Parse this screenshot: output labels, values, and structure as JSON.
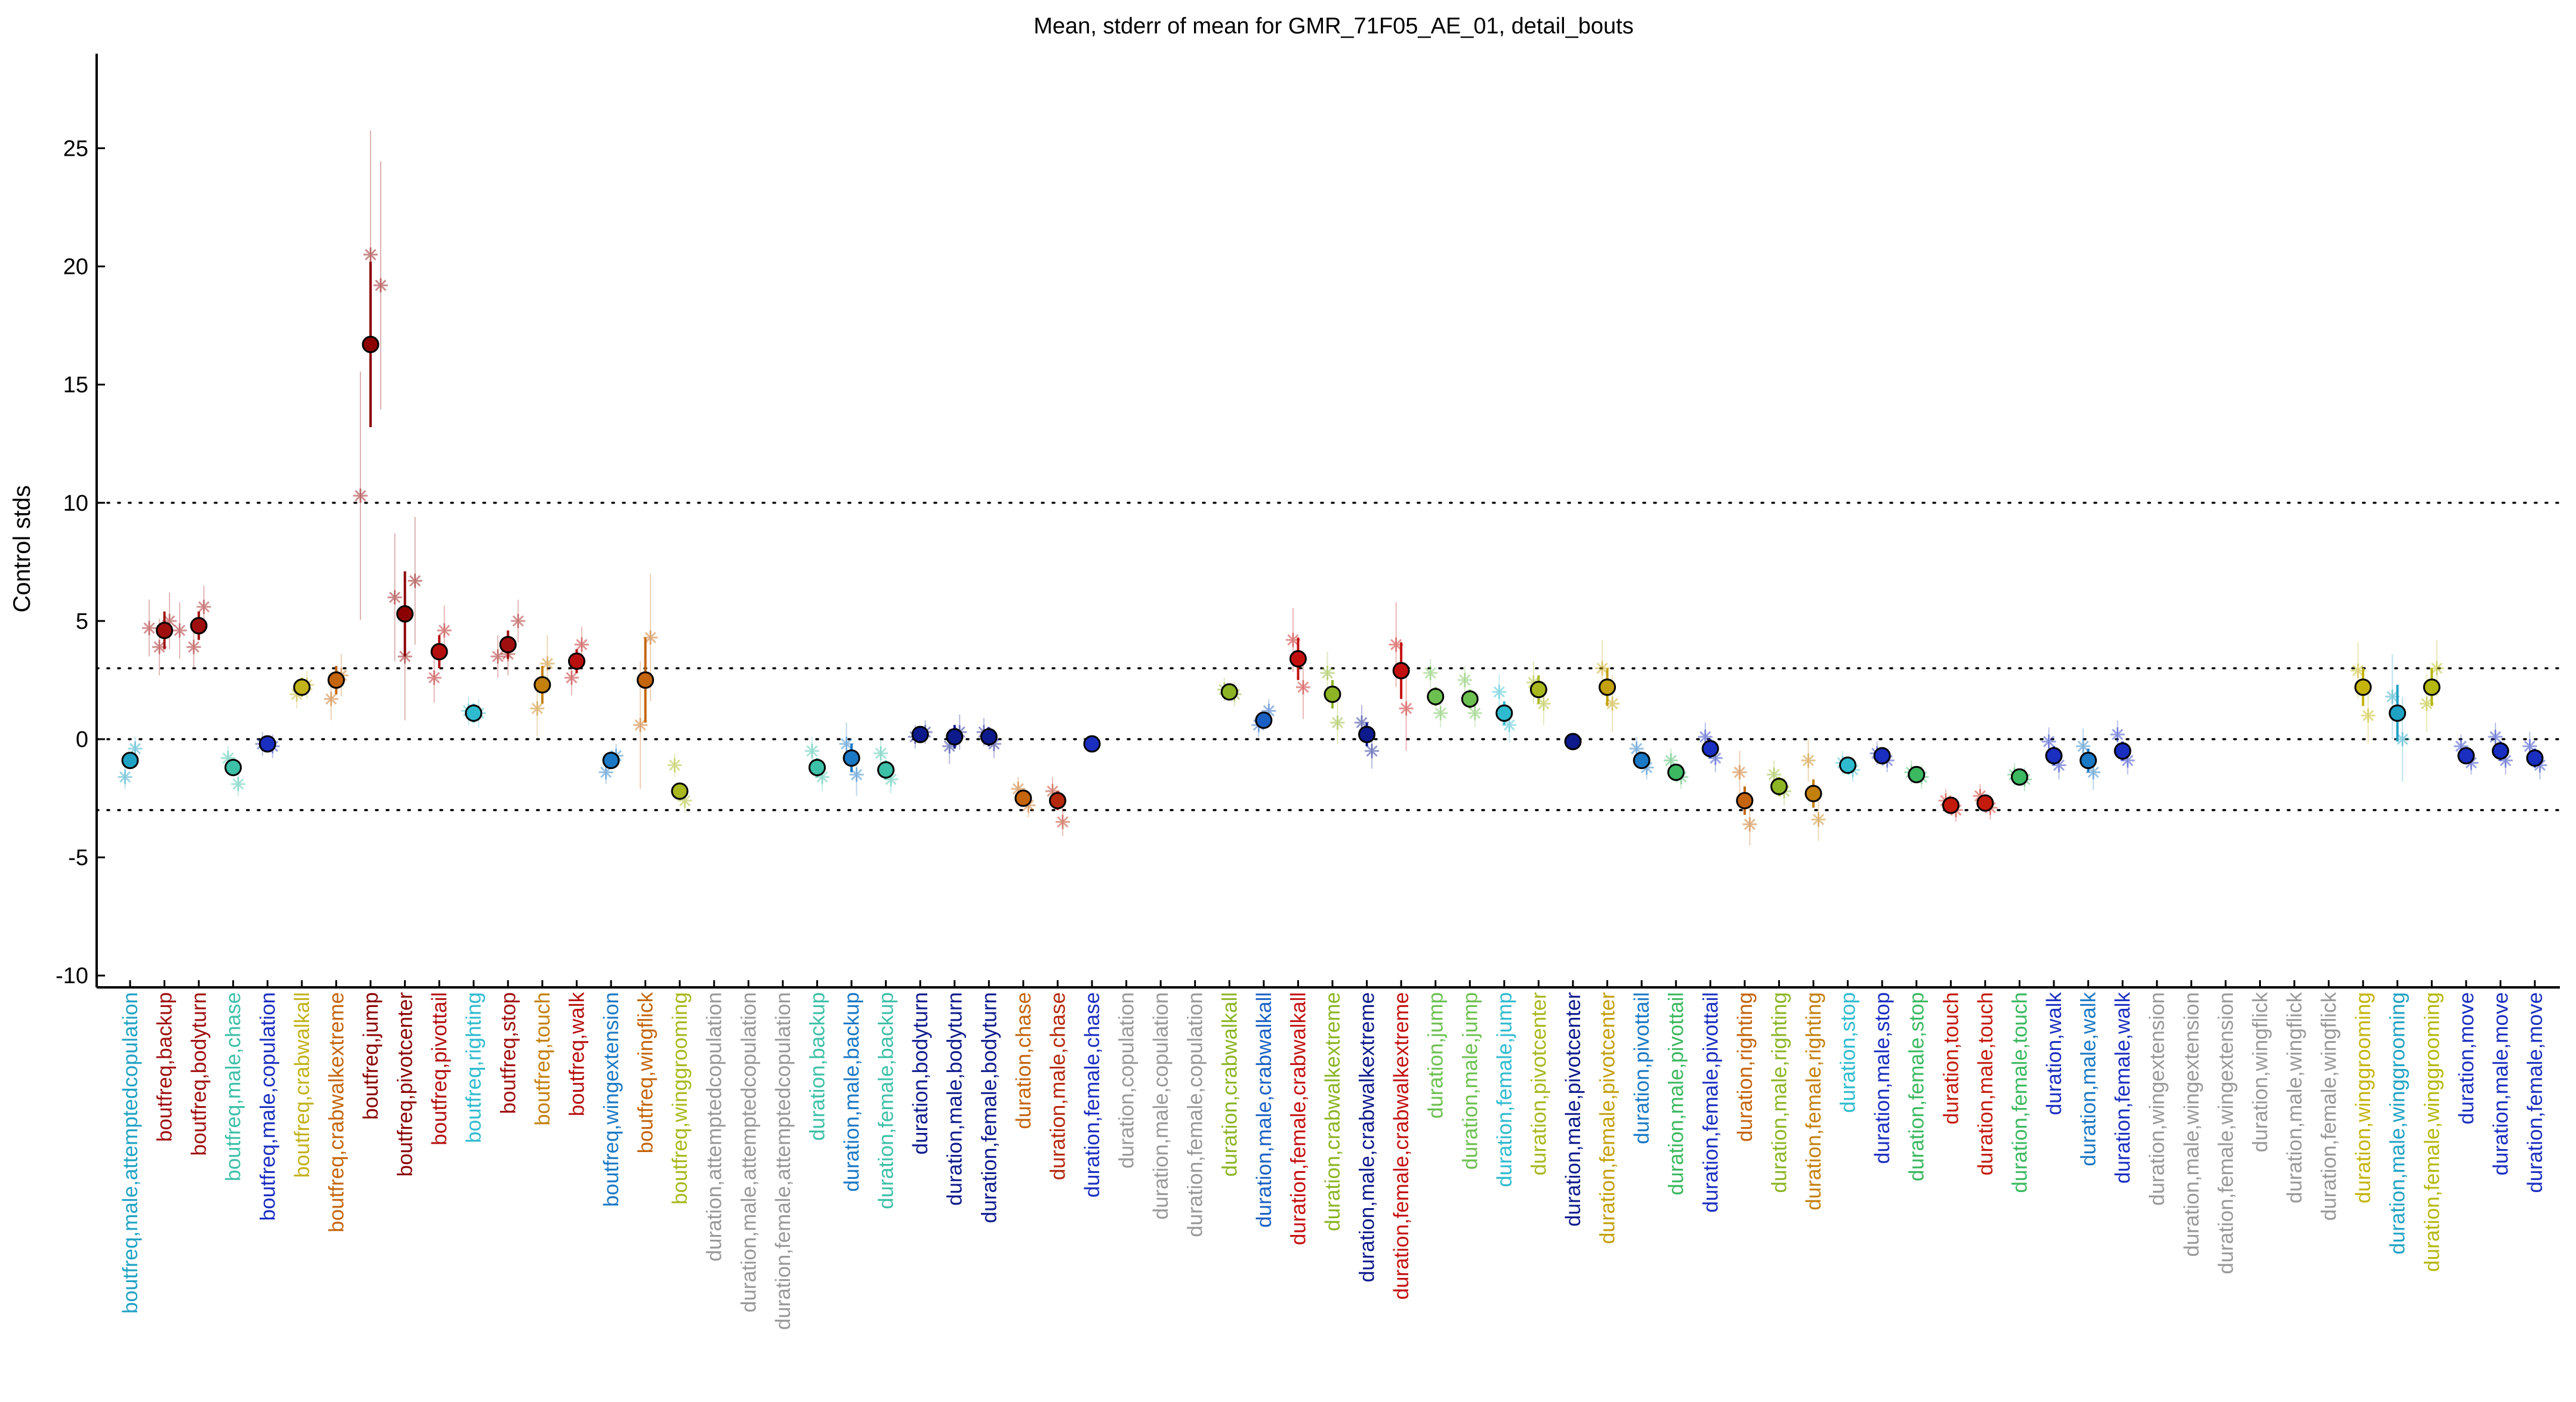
{
  "chart_data": {
    "type": "scatter",
    "title": "Mean, stderr of mean for GMR_71F05_AE_01, detail_bouts",
    "xlabel": "",
    "ylabel": "Control stds",
    "ylim": [
      -10.5,
      29
    ],
    "yticks": [
      -10,
      -5,
      0,
      5,
      10,
      15,
      20,
      25
    ],
    "reference_lines": [
      -3,
      0,
      3,
      10
    ],
    "grid": false,
    "legend": "none",
    "categories": [
      {
        "label": "boutfreq,male,attemptedcopulation",
        "color": "#1fa2c4",
        "mean": -0.9,
        "sem": 0.3,
        "reps": [
          -1.6,
          -0.4
        ]
      },
      {
        "label": "boutfreq,backup",
        "color": "#a00f0f",
        "mean": 4.6,
        "sem": 0.8,
        "reps": [
          4.7,
          3.9,
          5.0,
          4.6
        ]
      },
      {
        "label": "boutfreq,bodyturn",
        "color": "#a00f0f",
        "mean": 4.8,
        "sem": 0.6,
        "reps": [
          3.9,
          5.6
        ]
      },
      {
        "label": "boutfreq,male,chase",
        "color": "#3dc0a8",
        "mean": -1.2,
        "sem": 0.3,
        "reps": [
          -0.8,
          -1.9
        ]
      },
      {
        "label": "boutfreq,male,copulation",
        "color": "#1a2ec0",
        "mean": -0.2,
        "sem": 0.1,
        "reps": [
          -0.2,
          -0.3
        ]
      },
      {
        "label": "boutfreq,crabwalkall",
        "color": "#c2b21a",
        "mean": 2.2,
        "sem": 0.4,
        "reps": [
          1.9,
          2.3
        ]
      },
      {
        "label": "boutfreq,crabwalkextreme",
        "color": "#c4640c",
        "mean": 2.5,
        "sem": 0.6,
        "reps": [
          1.7,
          2.7
        ]
      },
      {
        "label": "boutfreq,jump",
        "color": "#8b0000",
        "mean": 16.7,
        "sem": 3.5,
        "reps": [
          10.3,
          20.5,
          19.2
        ]
      },
      {
        "label": "boutfreq,pivotcenter",
        "color": "#8b0000",
        "mean": 5.3,
        "sem": 1.8,
        "reps": [
          6.0,
          3.5,
          6.7
        ]
      },
      {
        "label": "boutfreq,pivottail",
        "color": "#b40f0f",
        "mean": 3.7,
        "sem": 0.7,
        "reps": [
          2.6,
          4.6
        ]
      },
      {
        "label": "boutfreq,righting",
        "color": "#2fbbcf",
        "mean": 1.1,
        "sem": 0.4,
        "reps": [
          1.2,
          1.1
        ]
      },
      {
        "label": "boutfreq,stop",
        "color": "#a00f0f",
        "mean": 4.0,
        "sem": 0.6,
        "reps": [
          3.5,
          3.6,
          5.0
        ]
      },
      {
        "label": "boutfreq,touch",
        "color": "#c4800c",
        "mean": 2.3,
        "sem": 0.8,
        "reps": [
          1.3,
          3.2
        ]
      },
      {
        "label": "boutfreq,walk",
        "color": "#b80f0f",
        "mean": 3.3,
        "sem": 0.5,
        "reps": [
          2.6,
          4.0
        ]
      },
      {
        "label": "boutfreq,wingextension",
        "color": "#1a78c4",
        "mean": -0.9,
        "sem": 0.3,
        "reps": [
          -1.4,
          -0.7
        ]
      },
      {
        "label": "boutfreq,wingflick",
        "color": "#c4640c",
        "mean": 2.5,
        "sem": 1.8,
        "reps": [
          0.6,
          4.3
        ]
      },
      {
        "label": "boutfreq,winggrooming",
        "color": "#a8b81e",
        "mean": -2.2,
        "sem": 0.3,
        "reps": [
          -1.1,
          -2.6
        ]
      },
      {
        "label": "duration,attemptedcopulation",
        "color": "#999999",
        "mean": null
      },
      {
        "label": "duration,male,attemptedcopulation",
        "color": "#999999",
        "mean": null
      },
      {
        "label": "duration,female,attemptedcopulation",
        "color": "#999999",
        "mean": null
      },
      {
        "label": "duration,backup",
        "color": "#3dc0a8",
        "mean": -1.2,
        "sem": 0.4,
        "reps": [
          -0.5,
          -1.6
        ]
      },
      {
        "label": "duration,male,backup",
        "color": "#1a78c4",
        "mean": -0.8,
        "sem": 0.6,
        "reps": [
          -0.2,
          -1.5
        ]
      },
      {
        "label": "duration,female,backup",
        "color": "#3dc0a8",
        "mean": -1.3,
        "sem": 0.4,
        "reps": [
          -0.6,
          -1.7
        ]
      },
      {
        "label": "duration,bodyturn",
        "color": "#0d1a8c",
        "mean": 0.2,
        "sem": 0.3,
        "reps": [
          0.1,
          0.3
        ]
      },
      {
        "label": "duration,male,bodyturn",
        "color": "#0d1a8c",
        "mean": 0.1,
        "sem": 0.5,
        "reps": [
          -0.3,
          0.3
        ]
      },
      {
        "label": "duration,female,bodyturn",
        "color": "#0d1a8c",
        "mean": 0.1,
        "sem": 0.4,
        "reps": [
          0.3,
          -0.2
        ]
      },
      {
        "label": "duration,chase",
        "color": "#c4640c",
        "mean": -2.5,
        "sem": 0.2,
        "reps": [
          -2.1,
          -2.8
        ]
      },
      {
        "label": "duration,male,chase",
        "color": "#b4280c",
        "mean": -2.6,
        "sem": 0.4,
        "reps": [
          -2.2,
          -3.5
        ]
      },
      {
        "label": "duration,female,chase",
        "color": "#1a2ec0",
        "mean": -0.2,
        "sem": 0.1,
        "reps": []
      },
      {
        "label": "duration,copulation",
        "color": "#999999",
        "mean": null
      },
      {
        "label": "duration,male,copulation",
        "color": "#999999",
        "mean": null
      },
      {
        "label": "duration,female,copulation",
        "color": "#999999",
        "mean": null
      },
      {
        "label": "duration,crabwalkall",
        "color": "#8cb424",
        "mean": 2.0,
        "sem": 0.2,
        "reps": [
          2.1,
          1.9
        ]
      },
      {
        "label": "duration,male,crabwalkall",
        "color": "#1a60c4",
        "mean": 0.8,
        "sem": 0.2,
        "reps": [
          0.6,
          1.2
        ]
      },
      {
        "label": "duration,female,crabwalkall",
        "color": "#c40f0f",
        "mean": 3.4,
        "sem": 0.9,
        "reps": [
          4.2,
          2.2
        ]
      },
      {
        "label": "duration,crabwalkextreme",
        "color": "#8cb424",
        "mean": 1.9,
        "sem": 0.6,
        "reps": [
          2.8,
          0.7
        ]
      },
      {
        "label": "duration,male,crabwalkextreme",
        "color": "#0d1a8c",
        "mean": 0.2,
        "sem": 0.5,
        "reps": [
          0.7,
          -0.5
        ]
      },
      {
        "label": "duration,female,crabwalkextreme",
        "color": "#c40f0f",
        "mean": 2.9,
        "sem": 1.2,
        "reps": [
          4.0,
          1.3
        ]
      },
      {
        "label": "duration,jump",
        "color": "#6cc050",
        "mean": 1.8,
        "sem": 0.4,
        "reps": [
          2.8,
          1.1
        ]
      },
      {
        "label": "duration,male,jump",
        "color": "#6cc050",
        "mean": 1.7,
        "sem": 0.4,
        "reps": [
          2.5,
          1.1
        ]
      },
      {
        "label": "duration,female,jump",
        "color": "#2fbbcf",
        "mean": 1.1,
        "sem": 0.5,
        "reps": [
          2.0,
          0.6
        ]
      },
      {
        "label": "duration,pivotcenter",
        "color": "#a8b81e",
        "mean": 2.1,
        "sem": 0.6,
        "reps": [
          2.4,
          1.5
        ]
      },
      {
        "label": "duration,male,pivotcenter",
        "color": "#0d1a8c",
        "mean": -0.1,
        "sem": 0.3,
        "reps": []
      },
      {
        "label": "duration,female,pivotcenter",
        "color": "#c4a00c",
        "mean": 2.2,
        "sem": 0.8,
        "reps": [
          3.0,
          1.5
        ]
      },
      {
        "label": "duration,pivottail",
        "color": "#1a78c4",
        "mean": -0.9,
        "sem": 0.3,
        "reps": [
          -0.4,
          -1.2
        ]
      },
      {
        "label": "duration,male,pivottail",
        "color": "#3cb860",
        "mean": -1.4,
        "sem": 0.3,
        "reps": [
          -0.9,
          -1.6
        ]
      },
      {
        "label": "duration,female,pivottail",
        "color": "#1a2ec0",
        "mean": -0.4,
        "sem": 0.4,
        "reps": [
          0.1,
          -0.8
        ]
      },
      {
        "label": "duration,righting",
        "color": "#c4640c",
        "mean": -2.6,
        "sem": 0.6,
        "reps": [
          -1.4,
          -3.6
        ]
      },
      {
        "label": "duration,male,righting",
        "color": "#8cb424",
        "mean": -2.0,
        "sem": 0.4,
        "reps": [
          -1.5,
          -2.2
        ]
      },
      {
        "label": "duration,female,righting",
        "color": "#c4800c",
        "mean": -2.3,
        "sem": 0.6,
        "reps": [
          -0.9,
          -3.4
        ]
      },
      {
        "label": "duration,stop",
        "color": "#2fbbcf",
        "mean": -1.1,
        "sem": 0.2,
        "reps": [
          -1.0,
          -1.3
        ]
      },
      {
        "label": "duration,male,stop",
        "color": "#1a2ec0",
        "mean": -0.7,
        "sem": 0.2,
        "reps": [
          -0.6,
          -0.9
        ]
      },
      {
        "label": "duration,female,stop",
        "color": "#3cb860",
        "mean": -1.5,
        "sem": 0.2,
        "reps": [
          -1.4,
          -1.6
        ]
      },
      {
        "label": "duration,touch",
        "color": "#c41a0c",
        "mean": -2.8,
        "sem": 0.2,
        "reps": [
          -2.6,
          -3.0
        ]
      },
      {
        "label": "duration,male,touch",
        "color": "#c41a0c",
        "mean": -2.7,
        "sem": 0.2,
        "reps": [
          -2.4,
          -2.9
        ]
      },
      {
        "label": "duration,female,touch",
        "color": "#3cb860",
        "mean": -1.6,
        "sem": 0.2,
        "reps": [
          -1.5,
          -1.7
        ]
      },
      {
        "label": "duration,walk",
        "color": "#1a2ec0",
        "mean": -0.7,
        "sem": 0.4,
        "reps": [
          -0.1,
          -1.1
        ]
      },
      {
        "label": "duration,male,walk",
        "color": "#1a78c4",
        "mean": -0.9,
        "sem": 0.5,
        "reps": [
          -0.3,
          -1.4
        ]
      },
      {
        "label": "duration,female,walk",
        "color": "#1a2ec0",
        "mean": -0.5,
        "sem": 0.4,
        "reps": [
          0.2,
          -0.9
        ]
      },
      {
        "label": "duration,wingextension",
        "color": "#999999",
        "mean": null
      },
      {
        "label": "duration,male,wingextension",
        "color": "#999999",
        "mean": null
      },
      {
        "label": "duration,female,wingextension",
        "color": "#999999",
        "mean": null
      },
      {
        "label": "duration,wingflick",
        "color": "#999999",
        "mean": null
      },
      {
        "label": "duration,male,wingflick",
        "color": "#999999",
        "mean": null
      },
      {
        "label": "duration,female,wingflick",
        "color": "#999999",
        "mean": null
      },
      {
        "label": "duration,winggrooming",
        "color": "#c4b40c",
        "mean": 2.2,
        "sem": 0.8,
        "reps": [
          2.9,
          1.0
        ]
      },
      {
        "label": "duration,male,winggrooming",
        "color": "#1fa2c4",
        "mean": 1.1,
        "sem": 1.2,
        "reps": [
          1.8,
          0.0
        ]
      },
      {
        "label": "duration,female,winggrooming",
        "color": "#b4b80c",
        "mean": 2.2,
        "sem": 0.8,
        "reps": [
          1.5,
          3.0
        ]
      },
      {
        "label": "duration,move",
        "color": "#1a2ec0",
        "mean": -0.7,
        "sem": 0.3,
        "reps": [
          -0.3,
          -1.0
        ]
      },
      {
        "label": "duration,male,move",
        "color": "#1a2ec0",
        "mean": -0.5,
        "sem": 0.4,
        "reps": [
          0.1,
          -0.9
        ]
      },
      {
        "label": "duration,female,move",
        "color": "#1a2ec0",
        "mean": -0.8,
        "sem": 0.4,
        "reps": [
          -0.3,
          -1.1
        ]
      }
    ]
  }
}
